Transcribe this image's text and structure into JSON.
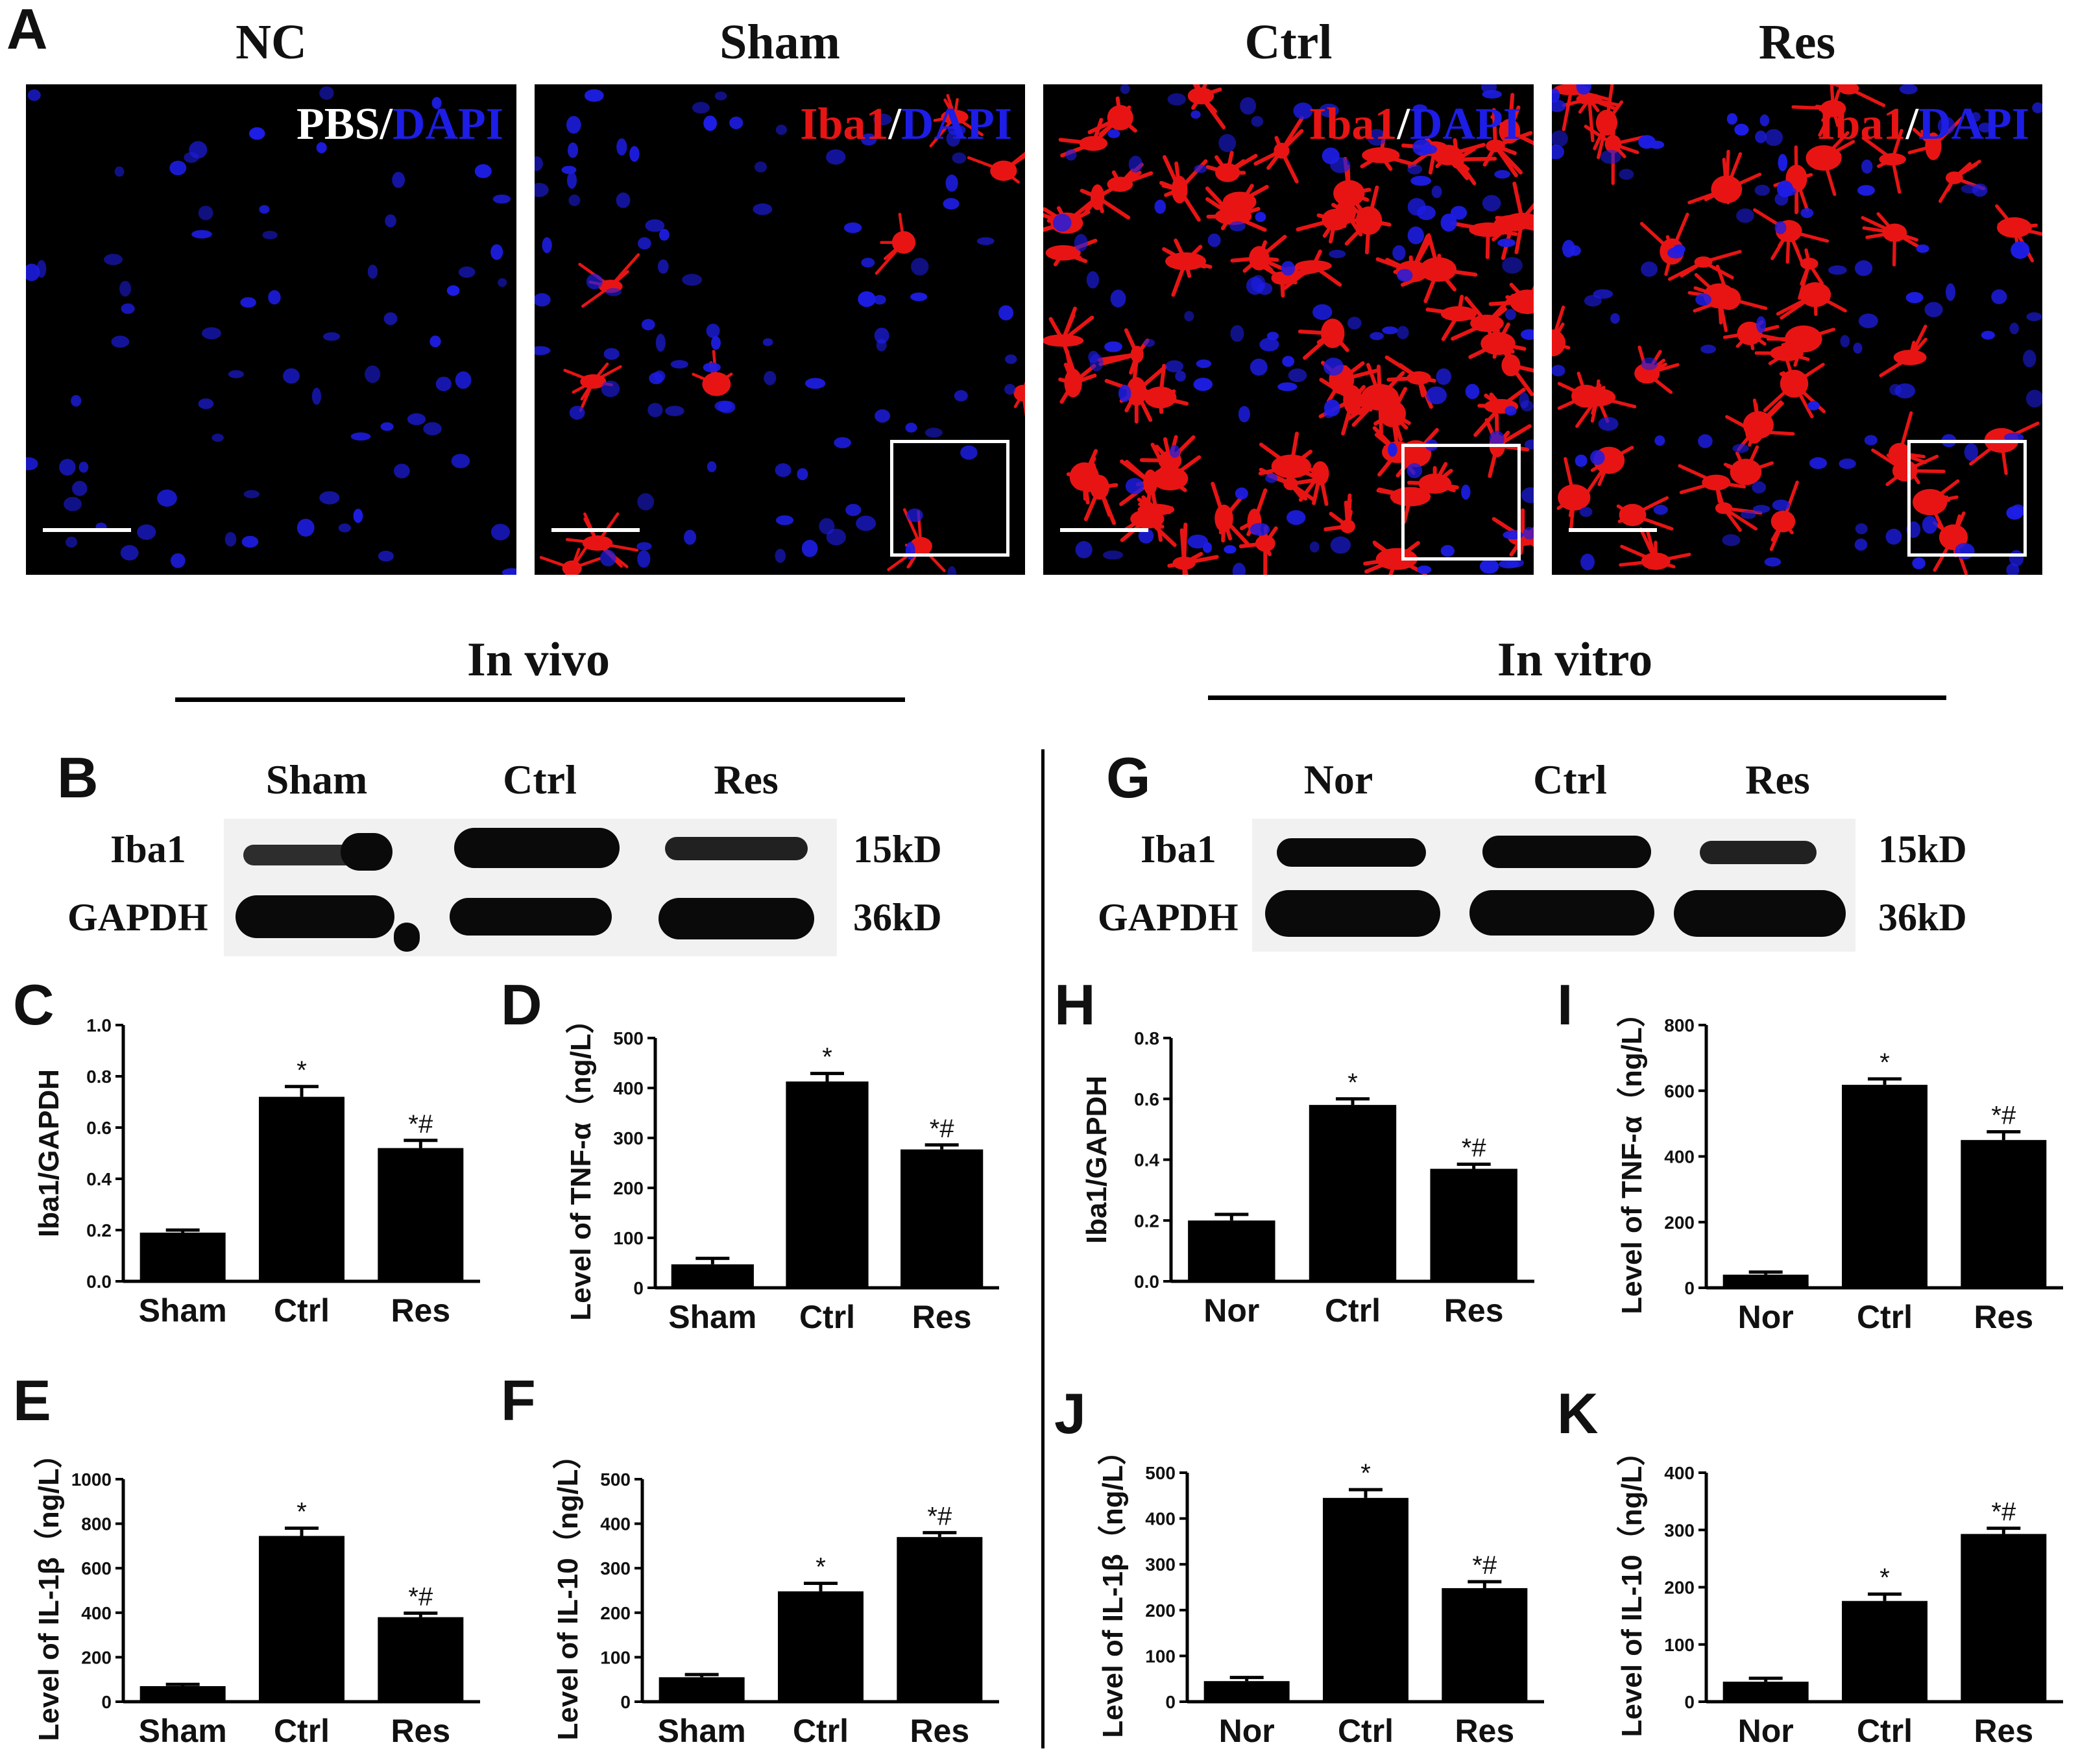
{
  "panel_a": {
    "letter": "A",
    "panels": [
      {
        "title": "NC",
        "stain": [
          {
            "text": "PBS",
            "color": "w"
          },
          {
            "text": "/",
            "color": "w"
          },
          {
            "text": "DAPI",
            "color": "b"
          }
        ],
        "inset": false
      },
      {
        "title": "Sham",
        "stain": [
          {
            "text": "Iba1",
            "color": "a"
          },
          {
            "text": "/",
            "color": "w"
          },
          {
            "text": "DAPI",
            "color": "b"
          }
        ],
        "inset": true
      },
      {
        "title": "Ctrl",
        "stain": [
          {
            "text": "Iba1",
            "color": "a"
          },
          {
            "text": "/",
            "color": "w"
          },
          {
            "text": "DAPI",
            "color": "b"
          }
        ],
        "inset": true
      },
      {
        "title": "Res",
        "stain": [
          {
            "text": "Iba1",
            "color": "a"
          },
          {
            "text": "/",
            "color": "w"
          },
          {
            "text": "DAPI",
            "color": "b"
          }
        ],
        "inset": true
      }
    ]
  },
  "sections": {
    "in_vivo": "In  vivo",
    "in_vitro": "In  vitro"
  },
  "blots": {
    "left": {
      "letter": "B",
      "columns": [
        "Sham",
        "Ctrl",
        "Res"
      ],
      "rows": [
        "Iba1",
        "GAPDH"
      ],
      "sizes": [
        "15kD",
        "36kD"
      ]
    },
    "right": {
      "letter": "G",
      "columns": [
        "Nor",
        "Ctrl",
        "Res"
      ],
      "rows": [
        "Iba1",
        "GAPDH"
      ],
      "sizes": [
        "15kD",
        "36kD"
      ]
    }
  },
  "colors": {
    "bar": "#000000",
    "iba1": "#e81414",
    "dapi": "#1d1de6"
  },
  "chart_data": [
    {
      "letter": "C",
      "type": "bar",
      "categories": [
        "Sham",
        "Ctrl",
        "Res"
      ],
      "values": [
        0.19,
        0.72,
        0.52
      ],
      "errors": [
        0.01,
        0.04,
        0.03
      ],
      "annotations": [
        "",
        "*",
        "*#"
      ],
      "ylabel": "Iba1/GAPDH",
      "ylim": [
        0,
        1.0
      ],
      "yticks": [
        "0.0",
        "0.2",
        "0.4",
        "0.6",
        "0.8",
        "1.0"
      ]
    },
    {
      "letter": "D",
      "type": "bar",
      "categories": [
        "Sham",
        "Ctrl",
        "Res"
      ],
      "values": [
        47,
        413,
        277
      ],
      "errors": [
        12,
        16,
        9
      ],
      "annotations": [
        "",
        "*",
        "*#"
      ],
      "ylabel": "Level of TNF-α（ng/L）",
      "ylim": [
        0,
        500
      ],
      "yticks": [
        "0",
        "100",
        "200",
        "300",
        "400",
        "500"
      ]
    },
    {
      "letter": "E",
      "type": "bar",
      "categories": [
        "Sham",
        "Ctrl",
        "Res"
      ],
      "values": [
        70,
        745,
        380
      ],
      "errors": [
        8,
        35,
        18
      ],
      "annotations": [
        "",
        "*",
        "*#"
      ],
      "ylabel": "Level of IL-1β（ng/L）",
      "ylim": [
        0,
        1000
      ],
      "yticks": [
        "0",
        "200",
        "400",
        "600",
        "800",
        "1000"
      ]
    },
    {
      "letter": "F",
      "type": "bar",
      "categories": [
        "Sham",
        "Ctrl",
        "Res"
      ],
      "values": [
        55,
        248,
        370
      ],
      "errors": [
        6,
        18,
        10
      ],
      "annotations": [
        "",
        "*",
        "*#"
      ],
      "ylabel": "Level of IL-10（ng/L）",
      "ylim": [
        0,
        500
      ],
      "yticks": [
        "0",
        "100",
        "200",
        "300",
        "400",
        "500"
      ]
    },
    {
      "letter": "H",
      "type": "bar",
      "categories": [
        "Nor",
        "Ctrl",
        "Res"
      ],
      "values": [
        0.2,
        0.58,
        0.37
      ],
      "errors": [
        0.02,
        0.02,
        0.015
      ],
      "annotations": [
        "",
        "*",
        "*#"
      ],
      "ylabel": "Iba1/GAPDH",
      "ylim": [
        0,
        0.8
      ],
      "yticks": [
        "0.0",
        "0.2",
        "0.4",
        "0.6",
        "0.8"
      ]
    },
    {
      "letter": "I",
      "type": "bar",
      "categories": [
        "Nor",
        "Ctrl",
        "Res"
      ],
      "values": [
        40,
        618,
        450
      ],
      "errors": [
        8,
        18,
        25
      ],
      "annotations": [
        "",
        "*",
        "*#"
      ],
      "ylabel": "Level of TNF-α（ng/L）",
      "ylim": [
        0,
        800
      ],
      "yticks": [
        "0",
        "200",
        "400",
        "600",
        "800"
      ]
    },
    {
      "letter": "J",
      "type": "bar",
      "categories": [
        "Nor",
        "Ctrl",
        "Res"
      ],
      "values": [
        45,
        445,
        248
      ],
      "errors": [
        8,
        18,
        14
      ],
      "annotations": [
        "",
        "*",
        "*#"
      ],
      "ylabel": "Level of IL-1β（ng/L）",
      "ylim": [
        0,
        500
      ],
      "yticks": [
        "0",
        "100",
        "200",
        "300",
        "400",
        "500"
      ]
    },
    {
      "letter": "K",
      "type": "bar",
      "categories": [
        "Nor",
        "Ctrl",
        "Res"
      ],
      "values": [
        35,
        176,
        293
      ],
      "errors": [
        6,
        12,
        10
      ],
      "annotations": [
        "",
        "*",
        "*#"
      ],
      "ylabel": "Level of IL-10（ng/L）",
      "ylim": [
        0,
        400
      ],
      "yticks": [
        "0",
        "100",
        "200",
        "300",
        "400"
      ]
    }
  ]
}
